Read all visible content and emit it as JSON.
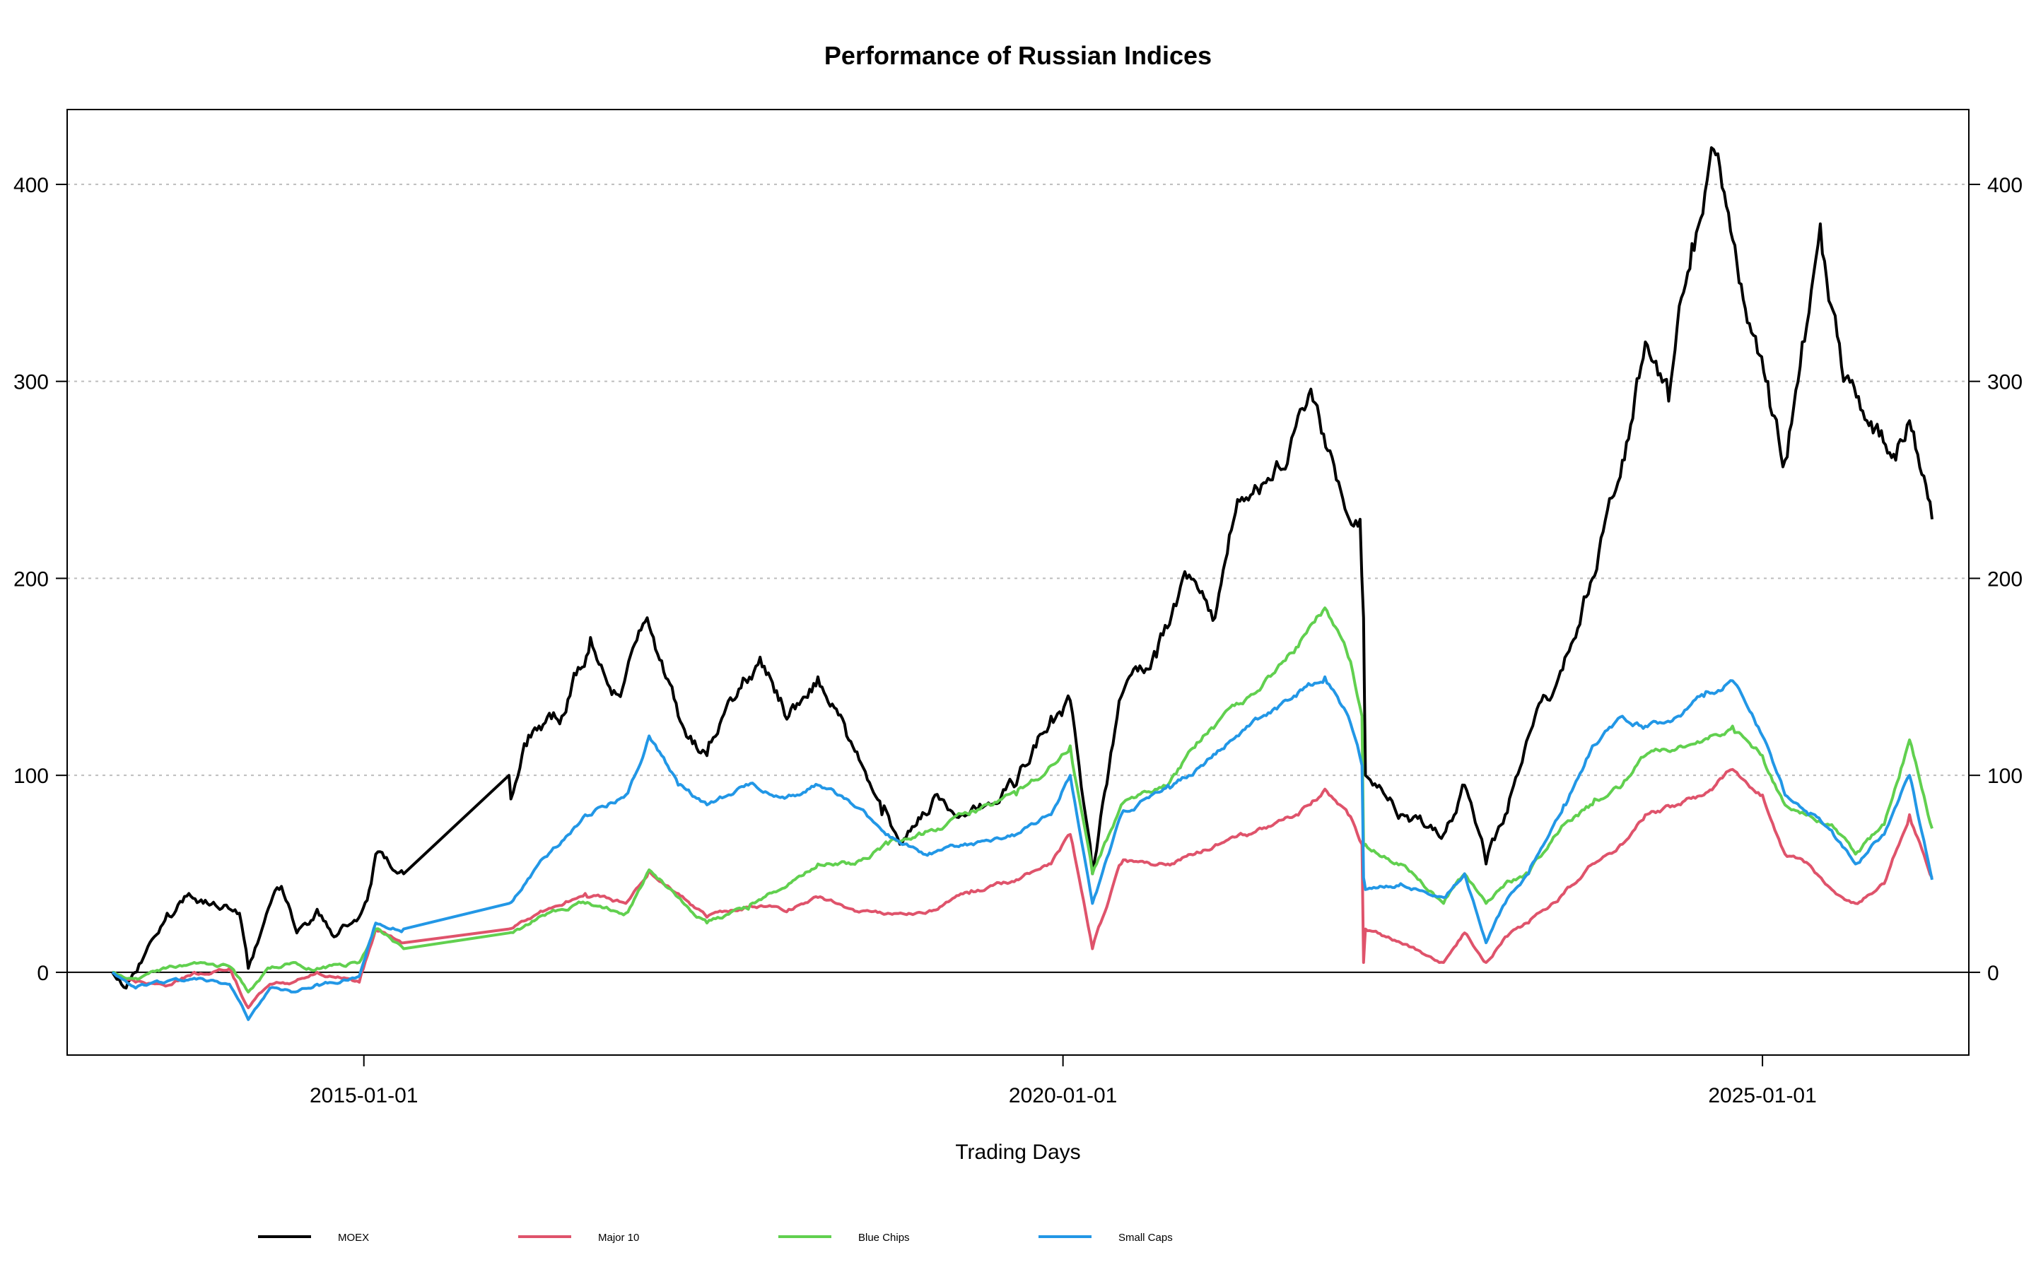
{
  "chart_data": {
    "type": "line",
    "title": "Performance of Russian Indices",
    "xlabel": "Trading Days",
    "ylabel": "",
    "x_ticks": [
      "2015-01-01",
      "2020-01-01",
      "2025-01-01"
    ],
    "y_ticks": [
      0,
      100,
      200,
      300,
      400
    ],
    "ylim": [
      -42,
      438
    ],
    "xlim": [
      "2012-11-17",
      "2026-06-24"
    ],
    "y_axis_both_sides": true,
    "grid": "horizontal dotted",
    "zero_line": true,
    "legend_position": "bottom",
    "series": [
      {
        "name": "MOEX",
        "color": "#000000",
        "points": [
          [
            "2013-03-15",
            0
          ],
          [
            "2013-04-20",
            -8
          ],
          [
            "2013-06-10",
            10
          ],
          [
            "2013-08-05",
            30
          ],
          [
            "2013-10-01",
            40
          ],
          [
            "2013-12-15",
            33
          ],
          [
            "2014-02-10",
            30
          ],
          [
            "2014-03-05",
            2
          ],
          [
            "2014-04-10",
            22
          ],
          [
            "2014-05-25",
            42
          ],
          [
            "2014-07-10",
            20
          ],
          [
            "2014-09-01",
            32
          ],
          [
            "2014-10-15",
            18
          ],
          [
            "2014-12-01",
            25
          ],
          [
            "2014-12-25",
            30
          ],
          [
            "2015-01-20",
            45
          ],
          [
            "2015-02-01",
            60
          ],
          [
            "2015-04-15",
            50
          ],
          [
            "2016-01-15",
            100
          ],
          [
            "2016-01-20",
            88
          ],
          [
            "2016-03-01",
            115
          ],
          [
            "2016-06-01",
            130
          ],
          [
            "2016-08-15",
            170
          ],
          [
            "2016-11-01",
            140
          ],
          [
            "2017-01-10",
            180
          ],
          [
            "2017-04-01",
            130
          ],
          [
            "2017-06-15",
            110
          ],
          [
            "2017-09-01",
            140
          ],
          [
            "2017-11-01",
            160
          ],
          [
            "2018-01-15",
            130
          ],
          [
            "2018-04-01",
            150
          ],
          [
            "2018-06-15",
            120
          ],
          [
            "2018-09-15",
            80
          ],
          [
            "2018-11-01",
            65
          ],
          [
            "2019-02-01",
            90
          ],
          [
            "2019-05-01",
            80
          ],
          [
            "2019-09-01",
            95
          ],
          [
            "2019-12-01",
            130
          ],
          [
            "2020-01-20",
            138
          ],
          [
            "2020-03-18",
            50
          ],
          [
            "2020-06-01",
            140
          ],
          [
            "2020-09-01",
            160
          ],
          [
            "2020-11-20",
            200
          ],
          [
            "2021-02-01",
            180
          ],
          [
            "2021-04-01",
            240
          ],
          [
            "2021-07-01",
            250
          ],
          [
            "2021-10-15",
            290
          ],
          [
            "2021-12-15",
            250
          ],
          [
            "2022-02-15",
            230
          ],
          [
            "2022-02-24",
            180
          ],
          [
            "2022-03-01",
            100
          ],
          [
            "2022-03-20",
            95
          ],
          [
            "2022-06-01",
            80
          ],
          [
            "2022-09-21",
            70
          ],
          [
            "2022-11-15",
            95
          ],
          [
            "2023-01-10",
            55
          ],
          [
            "2023-03-01",
            80
          ],
          [
            "2023-05-01",
            120
          ],
          [
            "2023-07-01",
            140
          ],
          [
            "2023-09-01",
            170
          ],
          [
            "2023-10-15",
            200
          ],
          [
            "2024-01-01",
            260
          ],
          [
            "2024-03-01",
            320
          ],
          [
            "2024-05-01",
            290
          ],
          [
            "2024-07-01",
            370
          ],
          [
            "2024-09-01",
            415
          ],
          [
            "2024-11-01",
            350
          ],
          [
            "2025-01-15",
            300
          ],
          [
            "2025-03-01",
            260
          ],
          [
            "2025-04-15",
            320
          ],
          [
            "2025-06-01",
            380
          ],
          [
            "2025-08-01",
            300
          ],
          [
            "2025-10-01",
            280
          ],
          [
            "2025-12-15",
            260
          ],
          [
            "2026-01-20",
            280
          ],
          [
            "2026-03-20",
            230
          ]
        ]
      },
      {
        "name": "Major 10",
        "color": "#DF536B",
        "points": [
          [
            "2013-03-15",
            0
          ],
          [
            "2013-05-15",
            -5
          ],
          [
            "2013-08-01",
            -7
          ],
          [
            "2013-10-15",
            0
          ],
          [
            "2014-01-15",
            2
          ],
          [
            "2014-03-05",
            -18
          ],
          [
            "2014-05-01",
            -6
          ],
          [
            "2014-07-01",
            -5
          ],
          [
            "2014-09-01",
            0
          ],
          [
            "2014-11-15",
            -3
          ],
          [
            "2014-12-20",
            -5
          ],
          [
            "2015-02-01",
            22
          ],
          [
            "2015-04-15",
            15
          ],
          [
            "2016-01-15",
            22
          ],
          [
            "2016-04-01",
            30
          ],
          [
            "2016-08-01",
            40
          ],
          [
            "2016-11-15",
            35
          ],
          [
            "2017-01-15",
            52
          ],
          [
            "2017-04-01",
            40
          ],
          [
            "2017-06-15",
            28
          ],
          [
            "2017-10-01",
            33
          ],
          [
            "2018-01-15",
            32
          ],
          [
            "2018-04-01",
            38
          ],
          [
            "2018-07-01",
            32
          ],
          [
            "2018-10-01",
            30
          ],
          [
            "2019-01-01",
            30
          ],
          [
            "2019-05-01",
            40
          ],
          [
            "2019-09-01",
            47
          ],
          [
            "2019-12-01",
            55
          ],
          [
            "2020-01-20",
            70
          ],
          [
            "2020-03-18",
            12
          ],
          [
            "2020-06-01",
            55
          ],
          [
            "2020-10-01",
            55
          ],
          [
            "2021-01-01",
            62
          ],
          [
            "2021-05-01",
            70
          ],
          [
            "2021-09-01",
            80
          ],
          [
            "2021-11-15",
            93
          ],
          [
            "2022-01-15",
            80
          ],
          [
            "2022-02-20",
            65
          ],
          [
            "2022-02-24",
            5
          ],
          [
            "2022-03-01",
            22
          ],
          [
            "2022-06-01",
            15
          ],
          [
            "2022-09-21",
            5
          ],
          [
            "2022-11-15",
            20
          ],
          [
            "2023-01-10",
            5
          ],
          [
            "2023-03-01",
            18
          ],
          [
            "2023-05-01",
            25
          ],
          [
            "2023-08-01",
            40
          ],
          [
            "2023-10-15",
            55
          ],
          [
            "2024-01-01",
            65
          ],
          [
            "2024-03-01",
            80
          ],
          [
            "2024-06-01",
            85
          ],
          [
            "2024-08-01",
            90
          ],
          [
            "2024-10-15",
            103
          ],
          [
            "2025-01-01",
            90
          ],
          [
            "2025-03-01",
            60
          ],
          [
            "2025-05-01",
            55
          ],
          [
            "2025-07-01",
            42
          ],
          [
            "2025-09-01",
            35
          ],
          [
            "2025-11-15",
            45
          ],
          [
            "2026-01-20",
            80
          ],
          [
            "2026-03-20",
            48
          ]
        ]
      },
      {
        "name": "Blue Chips",
        "color": "#61D04F",
        "points": [
          [
            "2013-03-15",
            0
          ],
          [
            "2013-05-15",
            -3
          ],
          [
            "2013-08-01",
            2
          ],
          [
            "2013-10-15",
            5
          ],
          [
            "2014-01-15",
            3
          ],
          [
            "2014-03-05",
            -10
          ],
          [
            "2014-05-01",
            2
          ],
          [
            "2014-07-01",
            5
          ],
          [
            "2014-09-01",
            2
          ],
          [
            "2014-11-15",
            3
          ],
          [
            "2014-12-20",
            5
          ],
          [
            "2015-02-01",
            22
          ],
          [
            "2015-04-15",
            12
          ],
          [
            "2016-01-15",
            20
          ],
          [
            "2016-04-01",
            28
          ],
          [
            "2016-08-01",
            35
          ],
          [
            "2016-11-15",
            30
          ],
          [
            "2017-01-15",
            52
          ],
          [
            "2017-04-01",
            38
          ],
          [
            "2017-06-15",
            25
          ],
          [
            "2017-10-01",
            32
          ],
          [
            "2018-01-15",
            45
          ],
          [
            "2018-04-01",
            55
          ],
          [
            "2018-07-01",
            55
          ],
          [
            "2018-10-01",
            65
          ],
          [
            "2019-01-01",
            70
          ],
          [
            "2019-05-01",
            80
          ],
          [
            "2019-09-01",
            90
          ],
          [
            "2019-12-01",
            105
          ],
          [
            "2020-01-20",
            115
          ],
          [
            "2020-03-18",
            50
          ],
          [
            "2020-06-01",
            85
          ],
          [
            "2020-10-01",
            95
          ],
          [
            "2021-01-01",
            120
          ],
          [
            "2021-05-01",
            140
          ],
          [
            "2021-09-01",
            165
          ],
          [
            "2021-11-15",
            185
          ],
          [
            "2022-01-15",
            160
          ],
          [
            "2022-02-20",
            130
          ],
          [
            "2022-02-24",
            65
          ],
          [
            "2022-03-01",
            65
          ],
          [
            "2022-06-01",
            55
          ],
          [
            "2022-09-21",
            35
          ],
          [
            "2022-11-15",
            50
          ],
          [
            "2023-01-10",
            35
          ],
          [
            "2023-03-01",
            45
          ],
          [
            "2023-05-01",
            50
          ],
          [
            "2023-08-01",
            75
          ],
          [
            "2023-10-15",
            85
          ],
          [
            "2024-01-01",
            95
          ],
          [
            "2024-03-01",
            110
          ],
          [
            "2024-06-01",
            115
          ],
          [
            "2024-08-01",
            118
          ],
          [
            "2024-10-15",
            125
          ],
          [
            "2025-01-01",
            110
          ],
          [
            "2025-03-01",
            85
          ],
          [
            "2025-05-01",
            80
          ],
          [
            "2025-07-01",
            75
          ],
          [
            "2025-09-01",
            60
          ],
          [
            "2025-11-15",
            75
          ],
          [
            "2026-01-20",
            118
          ],
          [
            "2026-03-20",
            73
          ]
        ]
      },
      {
        "name": "Small Caps",
        "color": "#2297E6",
        "points": [
          [
            "2013-03-15",
            0
          ],
          [
            "2013-05-15",
            -8
          ],
          [
            "2013-08-01",
            -5
          ],
          [
            "2013-10-15",
            -3
          ],
          [
            "2014-01-15",
            -6
          ],
          [
            "2014-03-05",
            -24
          ],
          [
            "2014-05-01",
            -8
          ],
          [
            "2014-07-01",
            -10
          ],
          [
            "2014-09-01",
            -6
          ],
          [
            "2014-11-15",
            -4
          ],
          [
            "2014-12-20",
            -2
          ],
          [
            "2015-02-01",
            25
          ],
          [
            "2015-04-15",
            22
          ],
          [
            "2016-01-15",
            35
          ],
          [
            "2016-04-01",
            55
          ],
          [
            "2016-08-01",
            80
          ],
          [
            "2016-11-15",
            90
          ],
          [
            "2017-01-15",
            120
          ],
          [
            "2017-04-01",
            95
          ],
          [
            "2017-06-15",
            85
          ],
          [
            "2017-10-01",
            95
          ],
          [
            "2018-01-15",
            90
          ],
          [
            "2018-04-01",
            95
          ],
          [
            "2018-07-01",
            85
          ],
          [
            "2018-10-01",
            70
          ],
          [
            "2019-01-01",
            60
          ],
          [
            "2019-05-01",
            65
          ],
          [
            "2019-09-01",
            70
          ],
          [
            "2019-12-01",
            80
          ],
          [
            "2020-01-20",
            100
          ],
          [
            "2020-03-18",
            35
          ],
          [
            "2020-06-01",
            80
          ],
          [
            "2020-10-01",
            95
          ],
          [
            "2021-01-01",
            105
          ],
          [
            "2021-05-01",
            125
          ],
          [
            "2021-09-01",
            140
          ],
          [
            "2021-11-15",
            150
          ],
          [
            "2022-01-15",
            130
          ],
          [
            "2022-02-20",
            105
          ],
          [
            "2022-02-24",
            48
          ],
          [
            "2022-03-01",
            42
          ],
          [
            "2022-06-01",
            45
          ],
          [
            "2022-09-21",
            38
          ],
          [
            "2022-11-15",
            50
          ],
          [
            "2023-01-10",
            15
          ],
          [
            "2023-03-01",
            35
          ],
          [
            "2023-05-01",
            50
          ],
          [
            "2023-08-01",
            85
          ],
          [
            "2023-10-15",
            115
          ],
          [
            "2024-01-01",
            130
          ],
          [
            "2024-03-01",
            125
          ],
          [
            "2024-06-01",
            130
          ],
          [
            "2024-08-01",
            140
          ],
          [
            "2024-10-15",
            148
          ],
          [
            "2025-01-01",
            120
          ],
          [
            "2025-03-01",
            90
          ],
          [
            "2025-05-01",
            80
          ],
          [
            "2025-07-01",
            72
          ],
          [
            "2025-09-01",
            55
          ],
          [
            "2025-11-15",
            70
          ],
          [
            "2026-01-20",
            100
          ],
          [
            "2026-03-20",
            47
          ]
        ]
      }
    ]
  }
}
